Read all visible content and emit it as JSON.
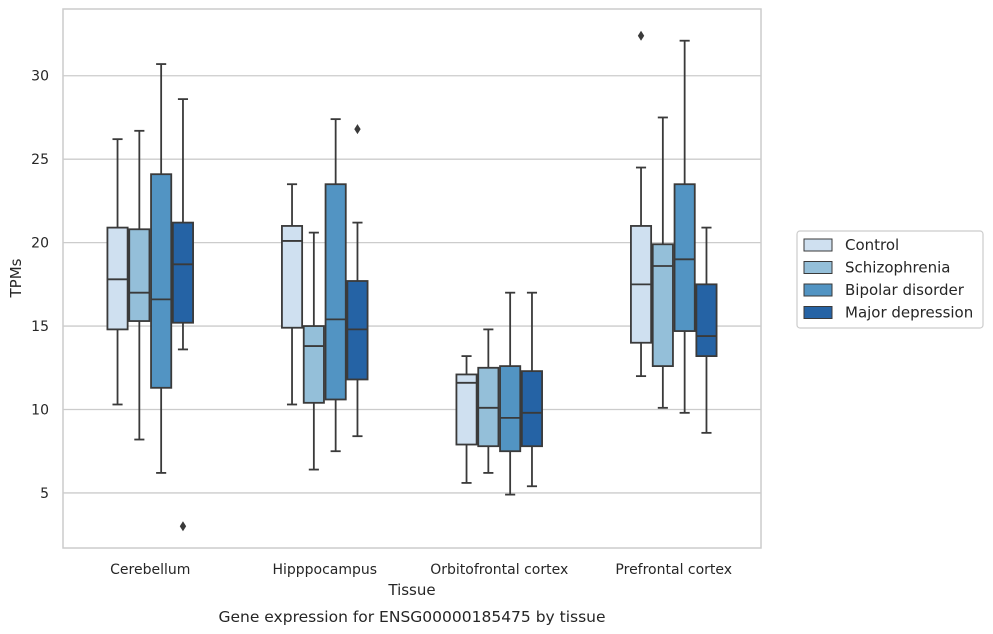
{
  "chart_data": {
    "type": "box",
    "caption": "Gene expression for ENSG00000185475 by tissue",
    "xlabel": "Tissue",
    "ylabel": "TPMs",
    "ylim": [
      1.7,
      34.0
    ],
    "yticks": [
      5,
      10,
      15,
      20,
      25,
      30
    ],
    "grid": "horizontal",
    "legend_position": "right",
    "categories": [
      "Cerebellum",
      "Hipppocampus",
      "Orbitofrontal cortex",
      "Prefrontal cortex"
    ],
    "series": [
      {
        "name": "Control",
        "color": "#cfe0f0",
        "boxes": [
          {
            "whislo": 10.3,
            "q1": 14.8,
            "med": 17.8,
            "q3": 20.9,
            "whishi": 26.2,
            "fliers": []
          },
          {
            "whislo": 10.3,
            "q1": 14.9,
            "med": 20.1,
            "q3": 21.0,
            "whishi": 23.5,
            "fliers": []
          },
          {
            "whislo": 5.6,
            "q1": 7.9,
            "med": 11.6,
            "q3": 12.1,
            "whishi": 13.2,
            "fliers": []
          },
          {
            "whislo": 12.0,
            "q1": 14.0,
            "med": 17.5,
            "q3": 21.0,
            "whishi": 24.5,
            "fliers": [
              32.4
            ]
          }
        ]
      },
      {
        "name": "Schizophrenia",
        "color": "#94bfd9",
        "boxes": [
          {
            "whislo": 8.2,
            "q1": 15.3,
            "med": 17.0,
            "q3": 20.8,
            "whishi": 26.7,
            "fliers": []
          },
          {
            "whislo": 6.4,
            "q1": 10.4,
            "med": 13.8,
            "q3": 15.0,
            "whishi": 20.6,
            "fliers": []
          },
          {
            "whislo": 6.2,
            "q1": 7.8,
            "med": 10.1,
            "q3": 12.5,
            "whishi": 14.8,
            "fliers": []
          },
          {
            "whislo": 10.1,
            "q1": 12.6,
            "med": 18.6,
            "q3": 19.9,
            "whishi": 27.5,
            "fliers": []
          }
        ]
      },
      {
        "name": "Bipolar disorder",
        "color": "#5294c3",
        "boxes": [
          {
            "whislo": 6.2,
            "q1": 11.3,
            "med": 16.6,
            "q3": 24.1,
            "whishi": 30.7,
            "fliers": []
          },
          {
            "whislo": 7.5,
            "q1": 10.6,
            "med": 15.4,
            "q3": 23.5,
            "whishi": 27.4,
            "fliers": []
          },
          {
            "whislo": 4.9,
            "q1": 7.5,
            "med": 9.5,
            "q3": 12.6,
            "whishi": 17.0,
            "fliers": []
          },
          {
            "whislo": 9.8,
            "q1": 14.7,
            "med": 19.0,
            "q3": 23.5,
            "whishi": 32.1,
            "fliers": []
          }
        ]
      },
      {
        "name": "Major depression",
        "color": "#2563a5",
        "boxes": [
          {
            "whislo": 13.6,
            "q1": 15.2,
            "med": 18.7,
            "q3": 21.2,
            "whishi": 28.6,
            "fliers": [
              3.0
            ]
          },
          {
            "whislo": 8.4,
            "q1": 11.8,
            "med": 14.8,
            "q3": 17.7,
            "whishi": 21.2,
            "fliers": [
              26.8
            ]
          },
          {
            "whislo": 5.4,
            "q1": 7.8,
            "med": 9.8,
            "q3": 12.3,
            "whishi": 17.0,
            "fliers": []
          },
          {
            "whislo": 8.6,
            "q1": 13.2,
            "med": 14.4,
            "q3": 17.5,
            "whishi": 20.9,
            "fliers": []
          }
        ]
      }
    ]
  }
}
